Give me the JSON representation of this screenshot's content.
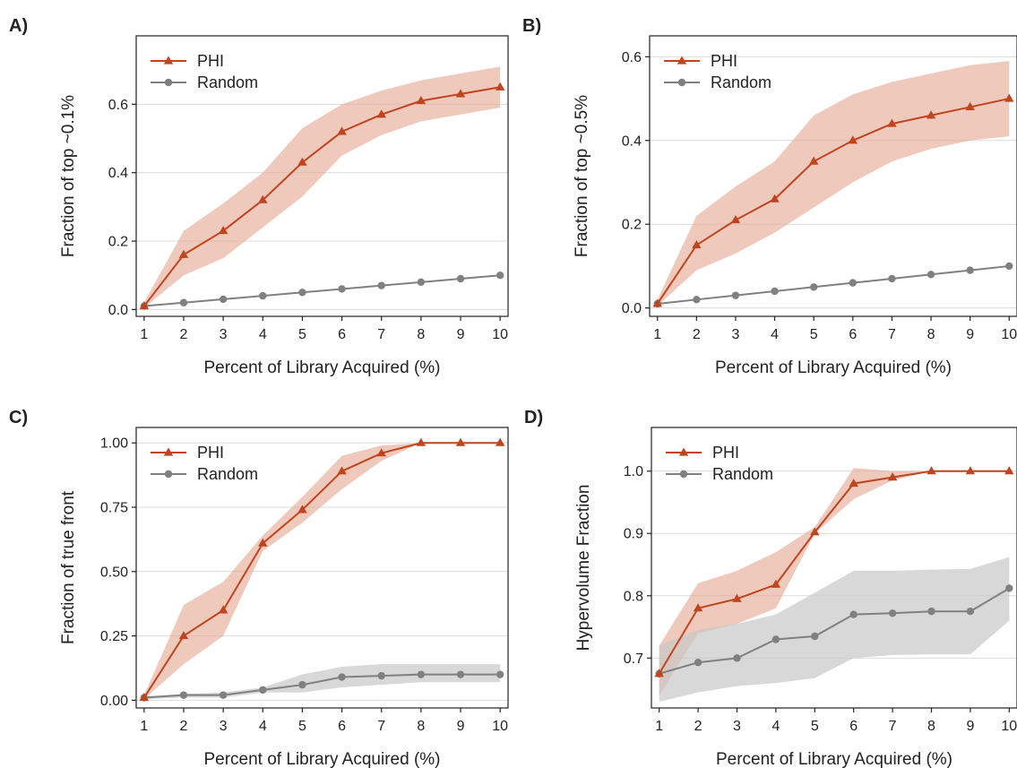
{
  "colors": {
    "phi": "#c0441e",
    "phi_band": "#e2a58f",
    "random": "#808080",
    "random_band": "#c8c8c8",
    "grid": "#dcdcdc",
    "axis": "#222222"
  },
  "chart_data": [
    {
      "panel": "A)",
      "type": "line",
      "xlabel": "Percent of Library Acquired (%)",
      "ylabel": "Fraction of top ~0.1%",
      "x": [
        1,
        2,
        3,
        4,
        5,
        6,
        7,
        8,
        9,
        10
      ],
      "xlim": [
        0.8,
        10.2
      ],
      "ylim": [
        -0.02,
        0.8
      ],
      "yticks": [
        0.0,
        0.2,
        0.4,
        0.6
      ],
      "ytick_labels": [
        "0.0",
        "0.2",
        "0.4",
        "0.6"
      ],
      "grid": "horizontal",
      "legend_position": "top-left",
      "series": [
        {
          "name": "PHI",
          "marker": "triangle",
          "color": "#c0441e",
          "values": [
            0.01,
            0.16,
            0.23,
            0.32,
            0.43,
            0.52,
            0.57,
            0.61,
            0.63,
            0.65
          ],
          "band_low": [
            0.005,
            0.1,
            0.15,
            0.24,
            0.33,
            0.45,
            0.51,
            0.55,
            0.57,
            0.59
          ],
          "band_high": [
            0.02,
            0.23,
            0.31,
            0.4,
            0.53,
            0.6,
            0.64,
            0.67,
            0.69,
            0.71
          ]
        },
        {
          "name": "Random",
          "marker": "circle",
          "color": "#808080",
          "values": [
            0.01,
            0.02,
            0.03,
            0.04,
            0.05,
            0.06,
            0.07,
            0.08,
            0.09,
            0.1
          ]
        }
      ]
    },
    {
      "panel": "B)",
      "type": "line",
      "xlabel": "Percent of Library Acquired (%)",
      "ylabel": "Fraction of top ~0.5%",
      "x": [
        1,
        2,
        3,
        4,
        5,
        6,
        7,
        8,
        9,
        10
      ],
      "xlim": [
        0.8,
        10.2
      ],
      "ylim": [
        -0.02,
        0.65
      ],
      "yticks": [
        0.0,
        0.2,
        0.4,
        0.6
      ],
      "ytick_labels": [
        "0.0",
        "0.2",
        "0.4",
        "0.6"
      ],
      "grid": "horizontal",
      "legend_position": "top-left",
      "series": [
        {
          "name": "PHI",
          "marker": "triangle",
          "color": "#c0441e",
          "values": [
            0.01,
            0.15,
            0.21,
            0.26,
            0.35,
            0.4,
            0.44,
            0.46,
            0.48,
            0.5
          ],
          "band_low": [
            0.005,
            0.09,
            0.13,
            0.18,
            0.24,
            0.3,
            0.35,
            0.38,
            0.4,
            0.41
          ],
          "band_high": [
            0.02,
            0.22,
            0.29,
            0.35,
            0.46,
            0.51,
            0.54,
            0.56,
            0.58,
            0.59
          ]
        },
        {
          "name": "Random",
          "marker": "circle",
          "color": "#808080",
          "values": [
            0.01,
            0.02,
            0.03,
            0.04,
            0.05,
            0.06,
            0.07,
            0.08,
            0.09,
            0.1
          ]
        }
      ]
    },
    {
      "panel": "C)",
      "type": "line",
      "xlabel": "Percent of Library Acquired (%)",
      "ylabel": "Fraction of true front",
      "x": [
        1,
        2,
        3,
        4,
        5,
        6,
        7,
        8,
        9,
        10
      ],
      "xlim": [
        0.8,
        10.2
      ],
      "ylim": [
        -0.03,
        1.06
      ],
      "yticks": [
        0.0,
        0.25,
        0.5,
        0.75,
        1.0
      ],
      "ytick_labels": [
        "0.00",
        "0.25",
        "0.50",
        "0.75",
        "1.00"
      ],
      "grid": "horizontal",
      "legend_position": "top-left",
      "series": [
        {
          "name": "PHI",
          "marker": "triangle",
          "color": "#c0441e",
          "values": [
            0.01,
            0.25,
            0.35,
            0.61,
            0.74,
            0.89,
            0.96,
            1.0,
            1.0,
            1.0
          ],
          "band_low": [
            0.005,
            0.14,
            0.25,
            0.58,
            0.69,
            0.82,
            0.93,
            1.0,
            1.0,
            1.0
          ],
          "band_high": [
            0.02,
            0.37,
            0.46,
            0.64,
            0.79,
            0.95,
            0.99,
            1.0,
            1.0,
            1.0
          ]
        },
        {
          "name": "Random",
          "marker": "circle",
          "color": "#808080",
          "values": [
            0.01,
            0.02,
            0.02,
            0.04,
            0.06,
            0.09,
            0.095,
            0.1,
            0.1,
            0.1
          ],
          "band_low": [
            0.005,
            0.01,
            0.01,
            0.03,
            0.03,
            0.05,
            0.06,
            0.07,
            0.07,
            0.07
          ],
          "band_high": [
            0.015,
            0.025,
            0.03,
            0.05,
            0.1,
            0.13,
            0.14,
            0.14,
            0.14,
            0.14
          ]
        }
      ]
    },
    {
      "panel": "D)",
      "type": "line",
      "xlabel": "Percent of Library Acquired (%)",
      "ylabel": "Hypervolume Fraction",
      "x": [
        1,
        2,
        3,
        4,
        5,
        6,
        7,
        8,
        9,
        10
      ],
      "xlim": [
        0.8,
        10.2
      ],
      "ylim": [
        0.62,
        1.07
      ],
      "yticks": [
        0.7,
        0.8,
        0.9,
        1.0
      ],
      "ytick_labels": [
        "0.7",
        "0.8",
        "0.9",
        "1.0"
      ],
      "grid": "horizontal",
      "legend_position": "top-left",
      "series": [
        {
          "name": "PHI",
          "marker": "triangle",
          "color": "#c0441e",
          "values": [
            0.675,
            0.78,
            0.795,
            0.818,
            0.902,
            0.98,
            0.99,
            1.0,
            1.0,
            1.0
          ],
          "band_low": [
            0.64,
            0.74,
            0.755,
            0.78,
            0.9,
            0.955,
            0.985,
            1.0,
            1.0,
            1.0
          ],
          "band_high": [
            0.72,
            0.82,
            0.84,
            0.87,
            0.91,
            1.005,
            1.0,
            1.0,
            1.0,
            1.0
          ]
        },
        {
          "name": "Random",
          "marker": "circle",
          "color": "#808080",
          "values": [
            0.675,
            0.693,
            0.7,
            0.73,
            0.735,
            0.77,
            0.772,
            0.775,
            0.775,
            0.812
          ],
          "band_low": [
            0.63,
            0.645,
            0.655,
            0.66,
            0.668,
            0.7,
            0.705,
            0.706,
            0.706,
            0.76
          ],
          "band_high": [
            0.72,
            0.745,
            0.755,
            0.77,
            0.805,
            0.84,
            0.84,
            0.842,
            0.843,
            0.862
          ]
        }
      ]
    }
  ]
}
